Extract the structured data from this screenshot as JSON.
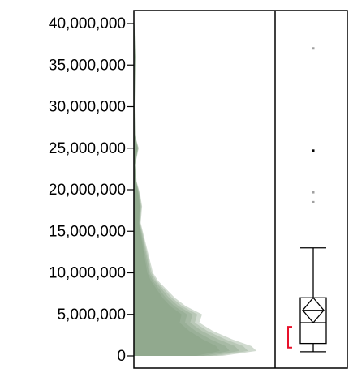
{
  "chart_data": {
    "type": "histogram+boxplot",
    "title": "",
    "xlabel": "",
    "ylabel": "",
    "ylim": [
      0,
      40000000
    ],
    "y_ticks": [
      {
        "value": 0,
        "label": "0"
      },
      {
        "value": 5000000,
        "label": "5,000,000"
      },
      {
        "value": 10000000,
        "label": "10,000,000"
      },
      {
        "value": 15000000,
        "label": "15,000,000"
      },
      {
        "value": 20000000,
        "label": "20,000,000"
      },
      {
        "value": 25000000,
        "label": "25,000,000"
      },
      {
        "value": 30000000,
        "label": "30,000,000"
      },
      {
        "value": 35000000,
        "label": "35,000,000"
      },
      {
        "value": 40000000,
        "label": "40,000,000"
      }
    ],
    "distribution": {
      "description_of_shape": "right-skewed density, concentrated near 0-5,000,000",
      "fill_color": "#7a9878",
      "profile": [
        {
          "y": 0,
          "w": 0.65
        },
        {
          "y": 600000,
          "w": 0.9
        },
        {
          "y": 1200000,
          "w": 0.86
        },
        {
          "y": 2000000,
          "w": 0.72
        },
        {
          "y": 3000000,
          "w": 0.58
        },
        {
          "y": 4000000,
          "w": 0.48
        },
        {
          "y": 5000000,
          "w": 0.5
        },
        {
          "y": 6000000,
          "w": 0.38
        },
        {
          "y": 7000000,
          "w": 0.3
        },
        {
          "y": 8000000,
          "w": 0.24
        },
        {
          "y": 9000000,
          "w": 0.18
        },
        {
          "y": 10000000,
          "w": 0.14
        },
        {
          "y": 12000000,
          "w": 0.11
        },
        {
          "y": 14000000,
          "w": 0.08
        },
        {
          "y": 16000000,
          "w": 0.05
        },
        {
          "y": 18000000,
          "w": 0.06
        },
        {
          "y": 19500000,
          "w": 0.045
        },
        {
          "y": 21000000,
          "w": 0.02
        },
        {
          "y": 23000000,
          "w": 0.01
        },
        {
          "y": 25000000,
          "w": 0.035
        },
        {
          "y": 26500000,
          "w": 0.01
        },
        {
          "y": 30000000,
          "w": 0.006
        },
        {
          "y": 34000000,
          "w": 0.01
        },
        {
          "y": 36000000,
          "w": 0.012
        },
        {
          "y": 38000000,
          "w": 0.008
        },
        {
          "y": 40000000,
          "w": 0.004
        }
      ]
    },
    "boxplot": {
      "whisker_low": 500000,
      "q1": 1500000,
      "median": 4000000,
      "q3": 7000000,
      "whisker_high": 13000000,
      "mean": 5500000,
      "mean_ci": [
        4000000,
        7000000
      ],
      "shortest_half": [
        1000000,
        3500000
      ],
      "outliers": [
        {
          "value": 37000000,
          "color": "#a0a0a0"
        },
        {
          "value": 24700000,
          "color": "#000000"
        },
        {
          "value": 19700000,
          "color": "#a0a0a0"
        },
        {
          "value": 18500000,
          "color": "#a0a0a0"
        }
      ],
      "shortest_half_color": "#e8102a"
    }
  }
}
